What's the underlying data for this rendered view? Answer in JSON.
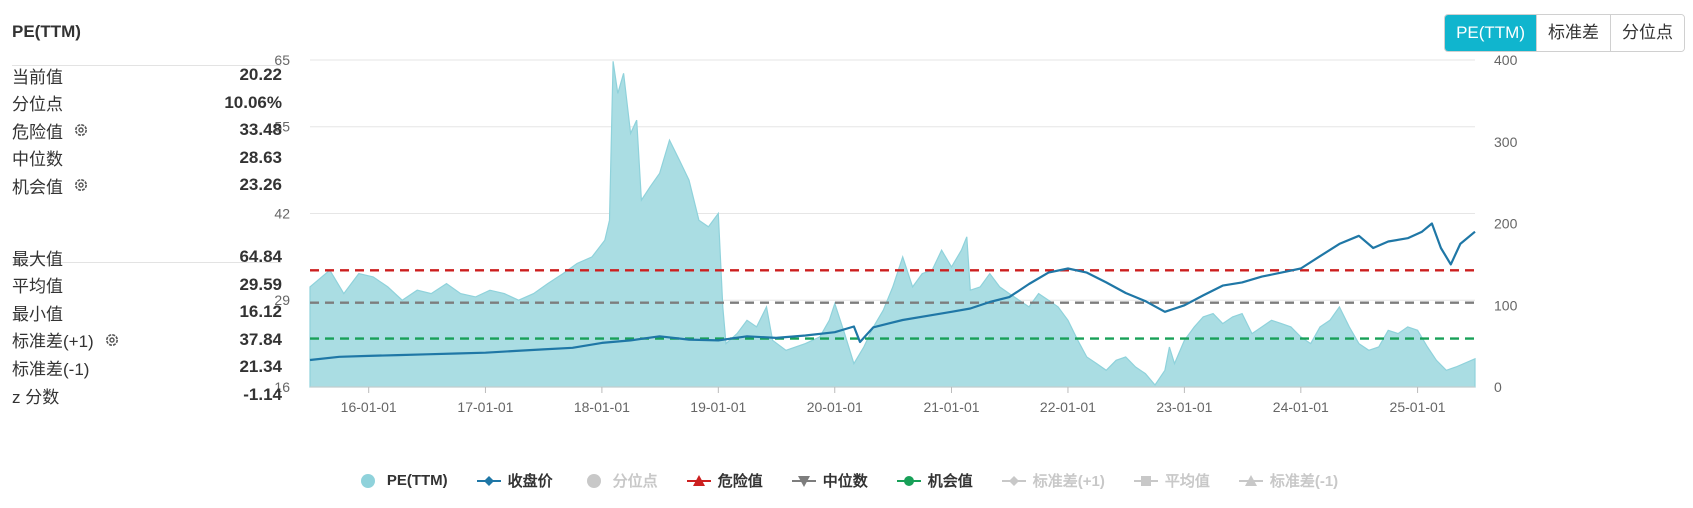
{
  "panel": {
    "title": "PE(TTM)",
    "stats_top": [
      {
        "label": "当前值",
        "value": "20.22",
        "gear": false
      },
      {
        "label": "分位点",
        "value": "10.06%",
        "gear": false
      },
      {
        "label": "危险值",
        "value": "33.48",
        "gear": true
      },
      {
        "label": "中位数",
        "value": "28.63",
        "gear": false
      },
      {
        "label": "机会值",
        "value": "23.26",
        "gear": true
      }
    ],
    "stats_bottom": [
      {
        "label": "最大值",
        "value": "64.84",
        "gear": false
      },
      {
        "label": "平均值",
        "value": "29.59",
        "gear": false
      },
      {
        "label": "最小值",
        "value": "16.12",
        "gear": false
      },
      {
        "label": "标准差(+1)",
        "value": "37.84",
        "gear": true
      },
      {
        "label": "标准差(-1)",
        "value": "21.34",
        "gear": false
      },
      {
        "label": "z 分数",
        "value": "-1.14",
        "gear": false
      }
    ]
  },
  "toggle": {
    "options": [
      "PE(TTM)",
      "标准差",
      "分位点"
    ],
    "active": "PE(TTM)"
  },
  "chart_data": {
    "type": "area",
    "x_ticks": [
      "16-01-01",
      "17-01-01",
      "18-01-01",
      "19-01-01",
      "20-01-01",
      "21-01-01",
      "22-01-01",
      "23-01-01",
      "24-01-01",
      "25-01-01"
    ],
    "x_range": [
      "2015-07-01",
      "2025-06-30"
    ],
    "y_left": {
      "ticks": [
        16,
        29,
        42,
        55,
        65
      ],
      "range": [
        16,
        65
      ]
    },
    "y_right": {
      "ticks": [
        0,
        100,
        200,
        300,
        400
      ],
      "range": [
        0,
        400
      ]
    },
    "grid": true,
    "colors": {
      "pe": "#aadde3",
      "pe_line": "#8fd2db",
      "price": "#1f77a6",
      "danger": "#cc1f1f",
      "median": "#7d7d7d",
      "opportunity": "#18a058",
      "disabled": "#c8c8c8"
    },
    "reference_lines": [
      {
        "key": "danger",
        "value": 33.48
      },
      {
        "key": "median",
        "value": 28.63
      },
      {
        "key": "opportunity",
        "value": 23.26
      }
    ],
    "pe_series": [
      [
        "2015-07-01",
        31.0
      ],
      [
        "2015-09-01",
        33.5
      ],
      [
        "2015-10-15",
        30.0
      ],
      [
        "2015-12-01",
        33.0
      ],
      [
        "2016-01-15",
        32.5
      ],
      [
        "2016-03-01",
        31.0
      ],
      [
        "2016-04-15",
        29.0
      ],
      [
        "2016-06-01",
        30.5
      ],
      [
        "2016-07-15",
        30.0
      ],
      [
        "2016-09-01",
        31.5
      ],
      [
        "2016-10-15",
        30.0
      ],
      [
        "2016-12-01",
        29.5
      ],
      [
        "2017-01-15",
        30.5
      ],
      [
        "2017-03-01",
        30.0
      ],
      [
        "2017-04-15",
        29.0
      ],
      [
        "2017-06-01",
        30.0
      ],
      [
        "2017-07-15",
        31.5
      ],
      [
        "2017-09-01",
        33.0
      ],
      [
        "2017-10-15",
        34.5
      ],
      [
        "2017-12-01",
        35.5
      ],
      [
        "2018-01-10",
        38.0
      ],
      [
        "2018-01-25",
        41.0
      ],
      [
        "2018-02-05",
        64.8
      ],
      [
        "2018-02-20",
        60.0
      ],
      [
        "2018-03-10",
        63.0
      ],
      [
        "2018-04-01",
        54.0
      ],
      [
        "2018-04-20",
        56.0
      ],
      [
        "2018-05-05",
        44.0
      ],
      [
        "2018-06-01",
        46.0
      ],
      [
        "2018-07-01",
        48.0
      ],
      [
        "2018-08-01",
        53.0
      ],
      [
        "2018-09-01",
        50.0
      ],
      [
        "2018-10-01",
        47.0
      ],
      [
        "2018-11-01",
        41.0
      ],
      [
        "2018-12-01",
        40.0
      ],
      [
        "2019-01-01",
        42.0
      ],
      [
        "2019-01-15",
        28.0
      ],
      [
        "2019-01-25",
        22.5
      ],
      [
        "2019-03-01",
        24.0
      ],
      [
        "2019-04-01",
        26.0
      ],
      [
        "2019-05-01",
        25.0
      ],
      [
        "2019-06-01",
        28.0
      ],
      [
        "2019-06-20",
        23.0
      ],
      [
        "2019-08-01",
        21.5
      ],
      [
        "2019-10-01",
        22.5
      ],
      [
        "2019-11-15",
        23.5
      ],
      [
        "2019-12-15",
        26.0
      ],
      [
        "2020-01-01",
        28.5
      ],
      [
        "2020-02-01",
        24.0
      ],
      [
        "2020-03-01",
        19.5
      ],
      [
        "2020-04-01",
        22.0
      ],
      [
        "2020-05-01",
        25.0
      ],
      [
        "2020-06-01",
        27.5
      ],
      [
        "2020-07-01",
        31.0
      ],
      [
        "2020-08-01",
        35.5
      ],
      [
        "2020-09-01",
        31.0
      ],
      [
        "2020-10-01",
        33.0
      ],
      [
        "2020-11-01",
        33.5
      ],
      [
        "2020-12-01",
        36.5
      ],
      [
        "2021-01-01",
        34.0
      ],
      [
        "2021-02-01",
        36.5
      ],
      [
        "2021-02-18",
        38.5
      ],
      [
        "2021-03-01",
        30.5
      ],
      [
        "2021-04-01",
        31.0
      ],
      [
        "2021-05-01",
        33.0
      ],
      [
        "2021-06-01",
        31.0
      ],
      [
        "2021-07-01",
        30.0
      ],
      [
        "2021-08-01",
        29.0
      ],
      [
        "2021-09-01",
        28.0
      ],
      [
        "2021-10-01",
        30.0
      ],
      [
        "2021-11-01",
        29.0
      ],
      [
        "2021-12-01",
        28.0
      ],
      [
        "2022-01-01",
        26.0
      ],
      [
        "2022-02-01",
        23.0
      ],
      [
        "2022-03-01",
        20.5
      ],
      [
        "2022-04-01",
        19.5
      ],
      [
        "2022-05-01",
        18.5
      ],
      [
        "2022-06-01",
        20.0
      ],
      [
        "2022-07-01",
        20.5
      ],
      [
        "2022-08-01",
        19.0
      ],
      [
        "2022-09-01",
        18.0
      ],
      [
        "2022-10-01",
        16.3
      ],
      [
        "2022-11-01",
        18.5
      ],
      [
        "2022-11-15",
        22.0
      ],
      [
        "2022-12-01",
        19.5
      ],
      [
        "2023-01-01",
        23.0
      ],
      [
        "2023-02-01",
        25.0
      ],
      [
        "2023-03-01",
        26.5
      ],
      [
        "2023-04-01",
        27.0
      ],
      [
        "2023-05-01",
        25.5
      ],
      [
        "2023-06-01",
        26.5
      ],
      [
        "2023-07-01",
        27.0
      ],
      [
        "2023-08-01",
        24.0
      ],
      [
        "2023-09-01",
        25.0
      ],
      [
        "2023-10-01",
        26.0
      ],
      [
        "2023-11-01",
        25.5
      ],
      [
        "2023-12-01",
        25.0
      ],
      [
        "2024-01-01",
        23.5
      ],
      [
        "2024-02-01",
        22.5
      ],
      [
        "2024-03-01",
        25.0
      ],
      [
        "2024-04-01",
        26.0
      ],
      [
        "2024-05-01",
        28.0
      ],
      [
        "2024-06-01",
        25.0
      ],
      [
        "2024-07-01",
        22.5
      ],
      [
        "2024-08-01",
        21.5
      ],
      [
        "2024-09-01",
        22.0
      ],
      [
        "2024-10-01",
        24.5
      ],
      [
        "2024-11-01",
        24.0
      ],
      [
        "2024-12-01",
        25.0
      ],
      [
        "2025-01-01",
        24.5
      ],
      [
        "2025-02-01",
        22.0
      ],
      [
        "2025-03-01",
        20.0
      ],
      [
        "2025-04-01",
        18.5
      ],
      [
        "2025-05-01",
        19.0
      ],
      [
        "2025-06-30",
        20.22
      ]
    ],
    "price_series": [
      [
        "2015-07-01",
        33
      ],
      [
        "2015-10-01",
        37
      ],
      [
        "2016-01-01",
        38
      ],
      [
        "2016-04-01",
        39
      ],
      [
        "2016-07-01",
        40
      ],
      [
        "2016-10-01",
        41
      ],
      [
        "2017-01-01",
        42
      ],
      [
        "2017-04-01",
        44
      ],
      [
        "2017-07-01",
        46
      ],
      [
        "2017-10-01",
        48
      ],
      [
        "2018-01-01",
        54
      ],
      [
        "2018-04-01",
        57
      ],
      [
        "2018-07-01",
        62
      ],
      [
        "2018-10-01",
        58
      ],
      [
        "2019-01-01",
        57
      ],
      [
        "2019-04-01",
        62
      ],
      [
        "2019-07-01",
        60
      ],
      [
        "2019-10-01",
        63
      ],
      [
        "2020-01-01",
        67
      ],
      [
        "2020-03-01",
        74
      ],
      [
        "2020-03-20",
        55
      ],
      [
        "2020-05-01",
        73
      ],
      [
        "2020-08-01",
        82
      ],
      [
        "2020-11-01",
        88
      ],
      [
        "2021-01-01",
        92
      ],
      [
        "2021-03-01",
        96
      ],
      [
        "2021-05-01",
        104
      ],
      [
        "2021-07-01",
        110
      ],
      [
        "2021-09-01",
        126
      ],
      [
        "2021-11-01",
        140
      ],
      [
        "2022-01-01",
        145
      ],
      [
        "2022-03-01",
        140
      ],
      [
        "2022-05-01",
        128
      ],
      [
        "2022-07-01",
        115
      ],
      [
        "2022-09-01",
        105
      ],
      [
        "2022-11-01",
        92
      ],
      [
        "2023-01-01",
        100
      ],
      [
        "2023-03-01",
        112
      ],
      [
        "2023-05-01",
        124
      ],
      [
        "2023-07-01",
        128
      ],
      [
        "2023-09-01",
        135
      ],
      [
        "2023-11-01",
        140
      ],
      [
        "2024-01-01",
        145
      ],
      [
        "2024-03-01",
        160
      ],
      [
        "2024-05-01",
        175
      ],
      [
        "2024-07-01",
        185
      ],
      [
        "2024-08-15",
        170
      ],
      [
        "2024-10-01",
        178
      ],
      [
        "2024-12-01",
        182
      ],
      [
        "2025-01-15",
        190
      ],
      [
        "2025-02-15",
        200
      ],
      [
        "2025-03-15",
        170
      ],
      [
        "2025-04-15",
        150
      ],
      [
        "2025-05-15",
        175
      ],
      [
        "2025-06-30",
        190
      ]
    ]
  },
  "legend": [
    {
      "key": "pe",
      "label": "PE(TTM)",
      "symbol": "circle",
      "color": "#8fd2db",
      "enabled": true
    },
    {
      "key": "price",
      "label": "收盘价",
      "symbol": "diamond-line",
      "color": "#1f77a6",
      "enabled": true
    },
    {
      "key": "percentile",
      "label": "分位点",
      "symbol": "circle",
      "color": "#c8c8c8",
      "enabled": false
    },
    {
      "key": "danger",
      "label": "危险值",
      "symbol": "triangle-up-line",
      "color": "#cc1f1f",
      "enabled": true
    },
    {
      "key": "median",
      "label": "中位数",
      "symbol": "triangle-down-line",
      "color": "#7d7d7d",
      "enabled": true
    },
    {
      "key": "opportunity",
      "label": "机会值",
      "symbol": "circle-line",
      "color": "#18a058",
      "enabled": true
    },
    {
      "key": "std_plus",
      "label": "标准差(+1)",
      "symbol": "diamond-line",
      "color": "#c8c8c8",
      "enabled": false
    },
    {
      "key": "mean",
      "label": "平均值",
      "symbol": "square-line",
      "color": "#c8c8c8",
      "enabled": false
    },
    {
      "key": "std_minus",
      "label": "标准差(-1)",
      "symbol": "triangle-up-line",
      "color": "#c8c8c8",
      "enabled": false
    }
  ]
}
